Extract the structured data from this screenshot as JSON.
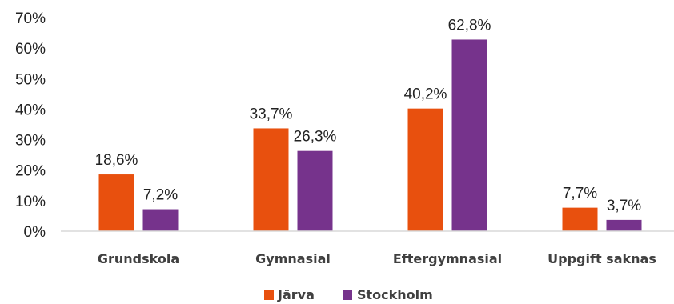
{
  "chart_data": {
    "type": "bar",
    "categories": [
      "Grundskola",
      "Gymnasial",
      "Eftergymnasial",
      "Uppgift saknas"
    ],
    "series": [
      {
        "name": "Järva",
        "color": "#E8500E",
        "values": [
          18.6,
          33.7,
          40.2,
          7.7
        ],
        "labels": [
          "18,6%",
          "33,7%",
          "40,2%",
          "7,7%"
        ]
      },
      {
        "name": "Stockholm",
        "color": "#76338C",
        "values": [
          7.2,
          26.3,
          62.8,
          3.7
        ],
        "labels": [
          "7,2%",
          "26,3%",
          "62,8%",
          "3,7%"
        ]
      }
    ],
    "ylim": [
      0,
      70
    ],
    "yticks": [
      0,
      10,
      20,
      30,
      40,
      50,
      60,
      70
    ],
    "ytick_labels": [
      "0%",
      "10%",
      "20%",
      "30%",
      "40%",
      "50%",
      "60%",
      "70%"
    ],
    "grid": false,
    "legend_position": "bottom-center",
    "baseline_color": "#D9D9D9"
  }
}
